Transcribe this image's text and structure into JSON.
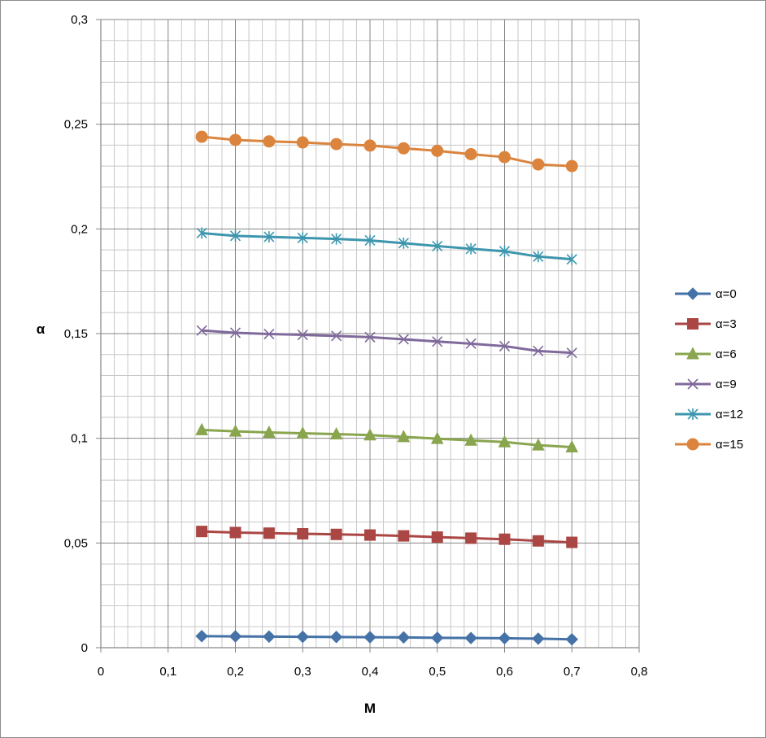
{
  "chart_data": {
    "type": "line",
    "xlabel": "M",
    "ylabel": "α",
    "xlim": [
      0,
      0.8
    ],
    "ylim": [
      0,
      0.3
    ],
    "x_major_ticks": [
      0,
      0.1,
      0.2,
      0.3,
      0.4,
      0.5,
      0.6,
      0.7,
      0.8
    ],
    "x_tick_labels": [
      "0",
      "0,1",
      "0,2",
      "0,3",
      "0,4",
      "0,5",
      "0,6",
      "0,7",
      "0,8"
    ],
    "y_major_ticks": [
      0,
      0.05,
      0.1,
      0.15,
      0.2,
      0.25,
      0.3
    ],
    "y_tick_labels": [
      "0",
      "0,05",
      "0,1",
      "0,15",
      "0,2",
      "0,25",
      "0,3"
    ],
    "grid": true,
    "minor_grid": true,
    "legend_position": "right",
    "x": [
      0.15,
      0.2,
      0.25,
      0.3,
      0.35,
      0.4,
      0.45,
      0.5,
      0.55,
      0.6,
      0.65,
      0.7
    ],
    "series": [
      {
        "name": "α=0",
        "color": "#4572a7",
        "marker": "diamond",
        "values": [
          0.0055,
          0.0054,
          0.0053,
          0.0052,
          0.0051,
          0.005,
          0.0049,
          0.0047,
          0.0046,
          0.0045,
          0.0043,
          0.004
        ]
      },
      {
        "name": "α=3",
        "color": "#aa4643",
        "marker": "square",
        "values": [
          0.0555,
          0.055,
          0.0547,
          0.0544,
          0.0541,
          0.0538,
          0.0534,
          0.0528,
          0.0523,
          0.0518,
          0.051,
          0.0503
        ]
      },
      {
        "name": "α=6",
        "color": "#89a54e",
        "marker": "triangle",
        "values": [
          0.104,
          0.1033,
          0.1028,
          0.1024,
          0.102,
          0.1015,
          0.1007,
          0.0998,
          0.099,
          0.0982,
          0.0967,
          0.0958
        ]
      },
      {
        "name": "α=9",
        "color": "#80699b",
        "marker": "x",
        "values": [
          0.1515,
          0.1504,
          0.1498,
          0.1494,
          0.1489,
          0.1483,
          0.1473,
          0.1462,
          0.1452,
          0.144,
          0.1417,
          0.1408
        ]
      },
      {
        "name": "α=12",
        "color": "#3d96ae",
        "marker": "star",
        "values": [
          0.198,
          0.1967,
          0.1962,
          0.1957,
          0.1952,
          0.1945,
          0.1932,
          0.1918,
          0.1905,
          0.1893,
          0.1868,
          0.1855
        ]
      },
      {
        "name": "α=15",
        "color": "#db843d",
        "marker": "circle",
        "values": [
          0.244,
          0.2425,
          0.2418,
          0.2413,
          0.2405,
          0.2398,
          0.2385,
          0.2373,
          0.2357,
          0.2343,
          0.2308,
          0.23
        ]
      }
    ]
  }
}
